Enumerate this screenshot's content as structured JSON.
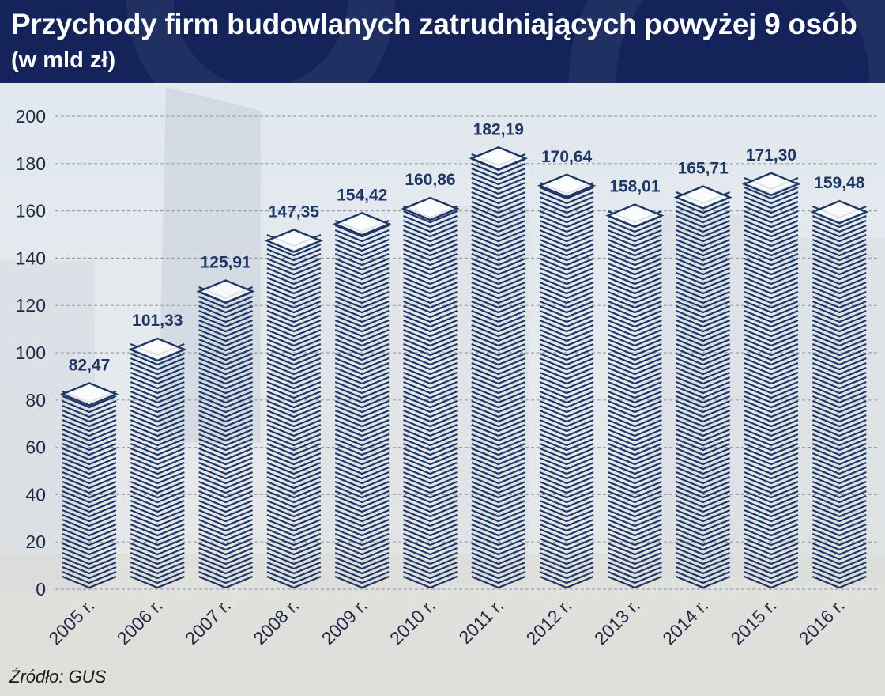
{
  "header": {
    "title": "Przychody firm budowlanych zatrudniających powyżej 9 osób",
    "subtitle": "(w mld zł)"
  },
  "source": "Źródło: GUS",
  "colors": {
    "header_bg": "#14245a",
    "bar_stroke": "#1e3766",
    "bar_fill": "#ffffff"
  },
  "chart_data": {
    "type": "bar",
    "title": "Przychody firm budowlanych zatrudniających powyżej 9 osób",
    "subtitle": "(w mld zł)",
    "categories": [
      "2005 r.",
      "2006 r.",
      "2007 r.",
      "2008 r.",
      "2009 r.",
      "2010 r.",
      "2011 r.",
      "2012 r.",
      "2013 r.",
      "2014 r.",
      "2015 r.",
      "2016 r."
    ],
    "values": [
      82.47,
      101.33,
      125.91,
      147.35,
      154.42,
      160.86,
      182.19,
      170.64,
      158.01,
      165.71,
      171.3,
      159.48
    ],
    "value_labels": [
      "82,47",
      "101,33",
      "125,91",
      "147,35",
      "154,42",
      "160,86",
      "182,19",
      "170,64",
      "158,01",
      "165,71",
      "171,30",
      "159,48"
    ],
    "yticks": [
      "0",
      "20",
      "40",
      "60",
      "80",
      "100",
      "120",
      "140",
      "160",
      "180",
      "200"
    ],
    "ylim": [
      0,
      200
    ],
    "grid": true,
    "legend": "none"
  }
}
